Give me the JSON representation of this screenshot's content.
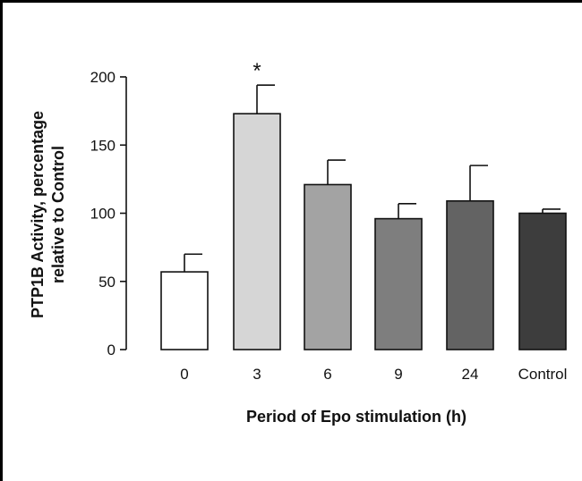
{
  "chart_data": {
    "type": "bar",
    "categories": [
      "0",
      "3",
      "6",
      "9",
      "24",
      "Control"
    ],
    "values": [
      57,
      173,
      121,
      96,
      109,
      100
    ],
    "errors": [
      13,
      21,
      18,
      11,
      26,
      3
    ],
    "colors": [
      "#ffffff",
      "#d6d6d6",
      "#a3a3a3",
      "#7e7e7e",
      "#636363",
      "#3d3d3d"
    ],
    "title": "",
    "xlabel": "Period of Epo stimulation (h)",
    "ylabel": [
      "PTP1B Activity, percentage",
      "relative to Control"
    ],
    "ylim": [
      0,
      200
    ],
    "yticks": [
      "0",
      "50",
      "100",
      "150",
      "200"
    ],
    "annotations": [
      {
        "category": "3",
        "text": "*"
      }
    ],
    "grid": false,
    "legend": "none"
  }
}
